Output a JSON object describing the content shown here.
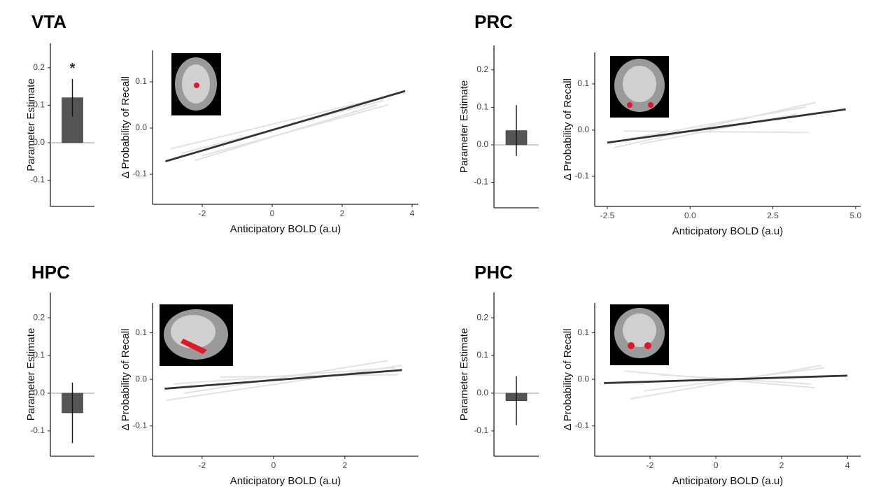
{
  "chart_data": [
    {
      "type": "bar",
      "title": "VTA",
      "annotation": "*",
      "ylabel": "Parameter Estimate",
      "categories": [
        null
      ],
      "values": [
        0.12
      ],
      "errors": [
        0.05
      ],
      "color": "#555555",
      "ylim": [
        -0.17,
        0.265
      ],
      "yticks": [
        -0.1,
        {
          "value": 0,
          "label": "0.0"
        },
        0.1,
        0.2
      ]
    },
    {
      "type": "line",
      "xlabel": "Anticipatory BOLD (a.u)",
      "ylabel": "Δ Probability of Recall",
      "xlim": [
        -3.42,
        4.18
      ],
      "ylim": [
        -0.165,
        0.168
      ],
      "xticks": [
        -2,
        0,
        2,
        4
      ],
      "yticks": [
        -0.1,
        {
          "value": 0,
          "label": "0.0"
        },
        0.1
      ],
      "series": [
        {
          "color": "#e2e2e2",
          "x": [
            -2.6,
            3.2
          ],
          "values": [
            -0.055,
            0.06
          ]
        },
        {
          "color": "#e2e2e2",
          "x": [
            -2.2,
            3.0
          ],
          "values": [
            -0.07,
            0.05
          ]
        },
        {
          "color": "#e2e2e2",
          "x": [
            -2.9,
            3.1
          ],
          "values": [
            -0.045,
            0.065
          ]
        },
        {
          "color": "#e2e2e2",
          "x": [
            -2.0,
            3.3
          ],
          "values": [
            -0.06,
            0.05
          ]
        },
        {
          "color": "#333333",
          "x": [
            -3.05,
            3.8
          ],
          "values": [
            -0.072,
            0.08
          ]
        }
      ]
    },
    {
      "type": "bar",
      "title": "PRC",
      "ylabel": "Parameter Estimate",
      "categories": [
        null
      ],
      "values": [
        0.038
      ],
      "errors": [
        0.068
      ],
      "color": "#555555",
      "ylim": [
        -0.168,
        0.265
      ],
      "yticks": [
        -0.1,
        {
          "value": 0,
          "label": "0.0"
        },
        0.1,
        0.2
      ]
    },
    {
      "type": "line",
      "xlabel": "Anticipatory BOLD (a.u)",
      "ylabel": "Δ Probability of Recall",
      "xlim": [
        -2.88,
        5.15
      ],
      "ylim": [
        -0.165,
        0.168
      ],
      "xticks": [
        -2.5,
        {
          "value": 0,
          "label": "0.0"
        },
        2.5,
        {
          "value": 5,
          "label": "5.0"
        }
      ],
      "yticks": [
        -0.1,
        {
          "value": 0,
          "label": "0.0"
        },
        0.1
      ],
      "series": [
        {
          "color": "#e2e2e2",
          "x": [
            -2.3,
            3.8
          ],
          "values": [
            -0.038,
            0.06
          ]
        },
        {
          "color": "#e2e2e2",
          "x": [
            -1.8,
            3.5
          ],
          "values": [
            -0.018,
            0.05
          ]
        },
        {
          "color": "#e2e2e2",
          "x": [
            -2.0,
            3.6
          ],
          "values": [
            -0.002,
            -0.005
          ]
        },
        {
          "color": "#e2e2e2",
          "x": [
            -1.5,
            3.2
          ],
          "values": [
            -0.03,
            0.035
          ]
        },
        {
          "color": "#333333",
          "x": [
            -2.5,
            4.7
          ],
          "values": [
            -0.027,
            0.045
          ]
        }
      ]
    },
    {
      "type": "bar",
      "title": "HPC",
      "ylabel": "Parameter Estimate",
      "categories": [
        null
      ],
      "values": [
        -0.052
      ],
      "errors": [
        0.08
      ],
      "color": "#555555",
      "ylim": [
        -0.167,
        0.267
      ],
      "yticks": [
        -0.1,
        {
          "value": 0,
          "label": "0.0"
        },
        0.1,
        0.2
      ]
    },
    {
      "type": "line",
      "xlabel": "Anticipatory BOLD (a.u)",
      "ylabel": "Δ Probability of Recall",
      "xlim": [
        -3.39,
        4.06
      ],
      "ylim": [
        -0.165,
        0.164
      ],
      "xticks": [
        -2,
        0,
        2
      ],
      "yticks": [
        -0.1,
        {
          "value": 0,
          "label": "0.0"
        },
        0.1
      ],
      "series": [
        {
          "color": "#e2e2e2",
          "x": [
            -3.0,
            3.6
          ],
          "values": [
            -0.045,
            0.03
          ]
        },
        {
          "color": "#e2e2e2",
          "x": [
            -2.5,
            3.2
          ],
          "values": [
            -0.03,
            0.04
          ]
        },
        {
          "color": "#e2e2e2",
          "x": [
            -1.5,
            3.5
          ],
          "values": [
            0.005,
            0.01
          ]
        },
        {
          "color": "#e2e2e2",
          "x": [
            -2.8,
            3.4
          ],
          "values": [
            -0.01,
            0.025
          ]
        },
        {
          "color": "#333333",
          "x": [
            -3.05,
            3.6
          ],
          "values": [
            -0.02,
            0.02
          ]
        }
      ]
    },
    {
      "type": "bar",
      "title": "PHC",
      "ylabel": "Parameter Estimate",
      "categories": [
        null
      ],
      "values": [
        -0.02
      ],
      "errors": [
        0.065
      ],
      "color": "#555555",
      "ylim": [
        -0.167,
        0.267
      ],
      "yticks": [
        -0.1,
        {
          "value": 0,
          "label": "0.0"
        },
        0.1,
        0.2
      ]
    },
    {
      "type": "line",
      "xlabel": "Anticipatory BOLD (a.u)",
      "ylabel": "Δ Probability of Recall",
      "xlim": [
        -3.68,
        4.4
      ],
      "ylim": [
        -0.165,
        0.164
      ],
      "xticks": [
        -2,
        0,
        2,
        4
      ],
      "yticks": [
        -0.1,
        {
          "value": 0,
          "label": "0.0"
        },
        0.1
      ],
      "series": [
        {
          "color": "#e2e2e2",
          "x": [
            -2.6,
            3.2
          ],
          "values": [
            -0.042,
            0.03
          ]
        },
        {
          "color": "#e2e2e2",
          "x": [
            -2.8,
            3.0
          ],
          "values": [
            0.018,
            -0.018
          ]
        },
        {
          "color": "#e2e2e2",
          "x": [
            -2.2,
            3.3
          ],
          "values": [
            -0.025,
            0.025
          ]
        },
        {
          "color": "#e2e2e2",
          "x": [
            -1.7,
            2.9
          ],
          "values": [
            0.01,
            -0.01
          ]
        },
        {
          "color": "#333333",
          "x": [
            -3.4,
            4.0
          ],
          "values": [
            -0.008,
            0.008
          ]
        }
      ]
    }
  ]
}
